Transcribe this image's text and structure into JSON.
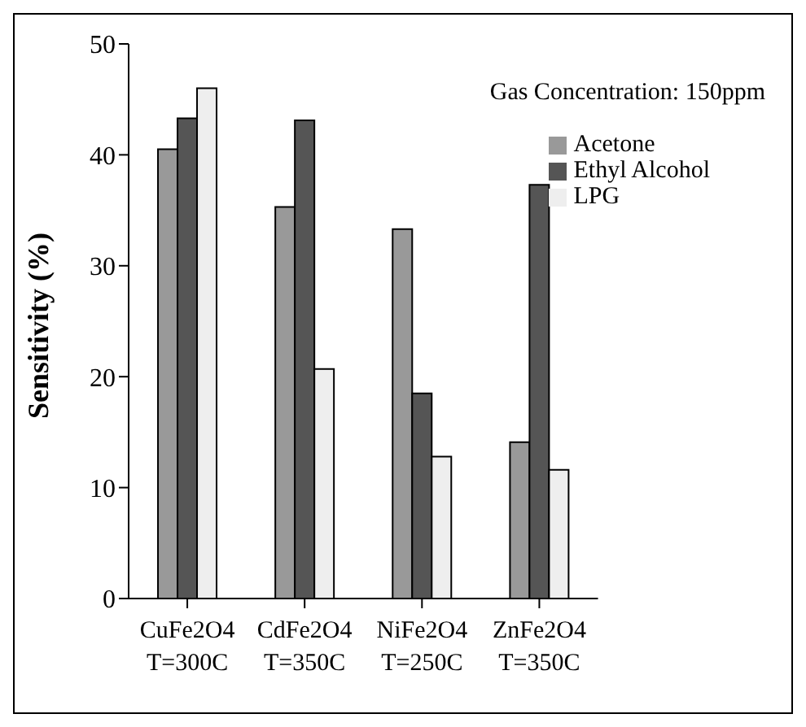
{
  "chart_data": {
    "type": "bar",
    "ylabel": "Sensitivity (%)",
    "annotations": [
      "Gas Concentration: 150ppm"
    ],
    "categories": [
      "CuFe2O4\nT=300C",
      "CdFe2O4\nT=350C",
      "NiFe2O4\nT=250C",
      "ZnFe2O4\nT=350C"
    ],
    "series": [
      {
        "name": "Acetone",
        "color": "#999999",
        "values": [
          40.5,
          35.3,
          33.3,
          14.1
        ]
      },
      {
        "name": "Ethyl Alcohol",
        "color": "#555555",
        "values": [
          43.3,
          43.1,
          18.5,
          37.3
        ]
      },
      {
        "name": "LPG",
        "color": "#eeeeee",
        "values": [
          46.0,
          20.7,
          12.8,
          11.6
        ]
      }
    ],
    "ylim": [
      0,
      50
    ],
    "yticks": [
      0,
      10,
      20,
      30,
      40,
      50
    ],
    "grid": false,
    "legend": "top right"
  }
}
